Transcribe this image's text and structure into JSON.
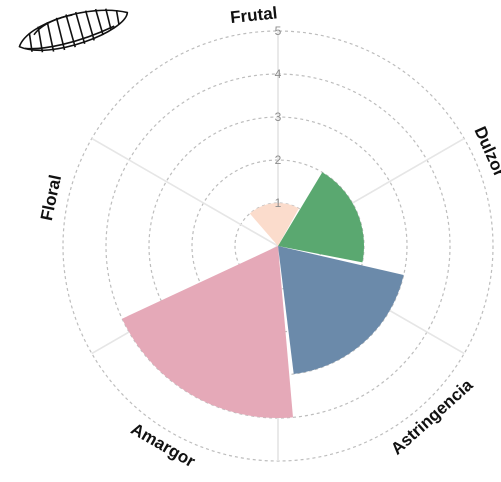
{
  "chart_data": {
    "type": "polar-bar",
    "title": "",
    "categories": [
      "Dulzor",
      "Astringencia",
      "Amargor",
      "Floral",
      "Frutal"
    ],
    "values": [
      2,
      3,
      4,
      0,
      1
    ],
    "colors": [
      "#5aa870",
      "#6b8aaa",
      "#e5a9b8",
      "#cccccc",
      "#fbdccc"
    ],
    "rlim": [
      0,
      5
    ],
    "r_ticks": [
      "1",
      "2",
      "3",
      "4",
      "5"
    ],
    "grid": true
  },
  "logo": {
    "icon": "cacao-pod-icon"
  }
}
